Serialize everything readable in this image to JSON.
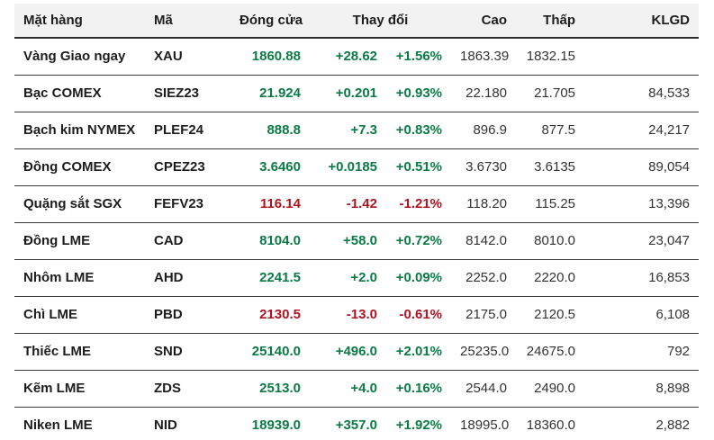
{
  "chart_data": {
    "type": "table",
    "header": {
      "name": "Mặt hàng",
      "code": "Mã",
      "close": "Đóng cửa",
      "change": "Thay đổi",
      "high": "Cao",
      "low": "Thấp",
      "volume": "KLGD"
    },
    "rows": [
      {
        "name": "Vàng Giao ngay",
        "code": "XAU",
        "close": "1860.88",
        "change": "+28.62",
        "change_pct": "+1.56%",
        "high": "1863.39",
        "low": "1832.15",
        "volume": ""
      },
      {
        "name": "Bạc COMEX",
        "code": "SIEZ23",
        "close": "21.924",
        "change": "+0.201",
        "change_pct": "+0.93%",
        "high": "22.180",
        "low": "21.705",
        "volume": "84,533"
      },
      {
        "name": "Bạch kim NYMEX",
        "code": "PLEF24",
        "close": "888.8",
        "change": "+7.3",
        "change_pct": "+0.83%",
        "high": "896.9",
        "low": "877.5",
        "volume": "24,217"
      },
      {
        "name": "Đồng COMEX",
        "code": "CPEZ23",
        "close": "3.6460",
        "change": "+0.0185",
        "change_pct": "+0.51%",
        "high": "3.6730",
        "low": "3.6135",
        "volume": "89,054"
      },
      {
        "name": "Quặng sắt SGX",
        "code": "FEFV23",
        "close": "116.14",
        "change": "-1.42",
        "change_pct": "-1.21%",
        "high": "118.20",
        "low": "115.25",
        "volume": "13,396"
      },
      {
        "name": "Đồng LME",
        "code": "CAD",
        "close": "8104.0",
        "change": "+58.0",
        "change_pct": "+0.72%",
        "high": "8142.0",
        "low": "8010.0",
        "volume": "23,047"
      },
      {
        "name": "Nhôm LME",
        "code": "AHD",
        "close": "2241.5",
        "change": "+2.0",
        "change_pct": "+0.09%",
        "high": "2252.0",
        "low": "2220.0",
        "volume": "16,853"
      },
      {
        "name": "Chì LME",
        "code": "PBD",
        "close": "2130.5",
        "change": "-13.0",
        "change_pct": "-0.61%",
        "high": "2175.0",
        "low": "2120.5",
        "volume": "6,108"
      },
      {
        "name": "Thiếc LME",
        "code": "SND",
        "close": "25140.0",
        "change": "+496.0",
        "change_pct": "+2.01%",
        "high": "25235.0",
        "low": "24675.0",
        "volume": "792"
      },
      {
        "name": "Kẽm LME",
        "code": "ZDS",
        "close": "2513.0",
        "change": "+4.0",
        "change_pct": "+0.16%",
        "high": "2544.0",
        "low": "2490.0",
        "volume": "8,898"
      },
      {
        "name": "Niken LME",
        "code": "NID",
        "close": "18939.0",
        "change": "+357.0",
        "change_pct": "+1.92%",
        "high": "18995.0",
        "low": "18360.0",
        "volume": "2,882"
      }
    ]
  },
  "colors": {
    "positive": "#0b7b45",
    "negative": "#b0121f",
    "header_bg": "#f2f2f2",
    "text_dark": "#1d1d1d",
    "text_muted": "#333333"
  }
}
